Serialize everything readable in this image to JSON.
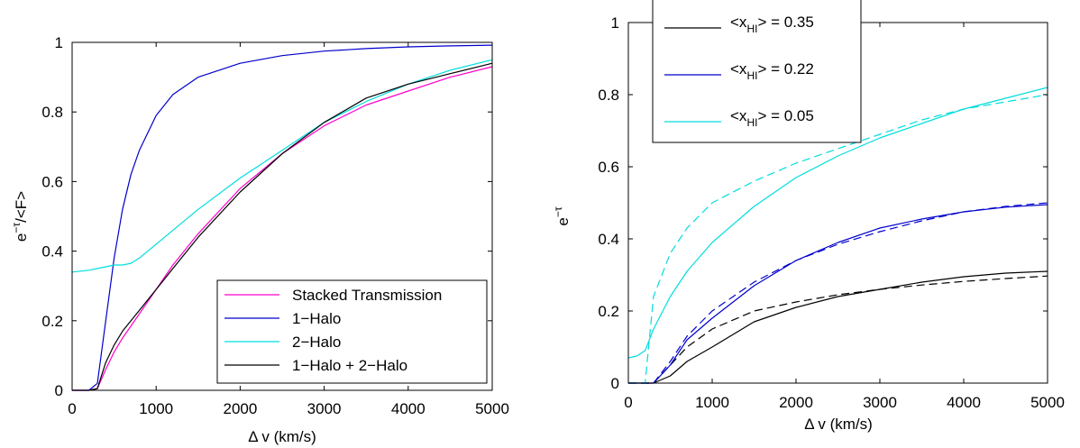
{
  "chart_data": [
    {
      "type": "line",
      "xlabel": "Δ v (km/s)",
      "ylabel": "e^-τ/<F>",
      "xlim": [
        0,
        5000
      ],
      "ylim": [
        0,
        1
      ],
      "xticks": [
        0,
        1000,
        2000,
        3000,
        4000,
        5000
      ],
      "yticks": [
        0,
        0.2,
        0.4,
        0.6,
        0.8,
        1
      ],
      "xtick_labels": [
        "0",
        "1000",
        "2000",
        "3000",
        "4000",
        "5000"
      ],
      "ytick_labels": [
        "0",
        "0.2",
        "0.4",
        "0.6",
        "0.8",
        "1"
      ],
      "grid": false,
      "legend_position": "bottom-right",
      "series": [
        {
          "name": "Stacked Transmission",
          "color": "#ff00cc",
          "dash": "solid",
          "x": [
            0,
            200,
            300,
            400,
            500,
            600,
            800,
            1000,
            1200,
            1500,
            2000,
            2500,
            3000,
            3500,
            4000,
            4500,
            5000
          ],
          "y": [
            0,
            0,
            0.005,
            0.06,
            0.11,
            0.15,
            0.22,
            0.29,
            0.36,
            0.45,
            0.58,
            0.68,
            0.76,
            0.82,
            0.86,
            0.9,
            0.93
          ]
        },
        {
          "name": "1−Halo",
          "color": "#0000cc",
          "dash": "solid",
          "x": [
            0,
            200,
            300,
            400,
            500,
            600,
            700,
            800,
            1000,
            1200,
            1500,
            2000,
            2500,
            3000,
            3500,
            4000,
            4500,
            5000
          ],
          "y": [
            0,
            0,
            0.02,
            0.2,
            0.38,
            0.52,
            0.62,
            0.69,
            0.79,
            0.85,
            0.9,
            0.94,
            0.962,
            0.975,
            0.982,
            0.987,
            0.99,
            0.992
          ]
        },
        {
          "name": "2−Halo",
          "color": "#00dddd",
          "dash": "solid",
          "x": [
            0,
            200,
            400,
            500,
            600,
            700,
            800,
            1000,
            1200,
            1500,
            2000,
            2500,
            3000,
            3500,
            4000,
            4500,
            5000
          ],
          "y": [
            0.34,
            0.345,
            0.355,
            0.36,
            0.36,
            0.365,
            0.38,
            0.42,
            0.46,
            0.52,
            0.61,
            0.69,
            0.77,
            0.83,
            0.88,
            0.92,
            0.95
          ]
        },
        {
          "name": "1−Halo + 2−Halo",
          "color": "#000000",
          "dash": "solid",
          "x": [
            0,
            200,
            300,
            400,
            500,
            600,
            800,
            1000,
            1200,
            1500,
            2000,
            2500,
            3000,
            3500,
            4000,
            4500,
            5000
          ],
          "y": [
            0,
            0,
            0.005,
            0.08,
            0.13,
            0.17,
            0.23,
            0.29,
            0.35,
            0.44,
            0.57,
            0.68,
            0.77,
            0.84,
            0.88,
            0.91,
            0.94
          ]
        }
      ]
    },
    {
      "type": "line",
      "xlabel": "Δ v (km/s)",
      "ylabel": "e^-τ",
      "xlim": [
        0,
        5000
      ],
      "ylim": [
        0,
        1
      ],
      "xticks": [
        0,
        1000,
        2000,
        3000,
        4000,
        5000
      ],
      "yticks": [
        0,
        0.2,
        0.4,
        0.6,
        0.8,
        1
      ],
      "xtick_labels": [
        "0",
        "1000",
        "2000",
        "3000",
        "4000",
        "5000"
      ],
      "ytick_labels": [
        "0",
        "0.2",
        "0.4",
        "0.6",
        "0.8",
        "1"
      ],
      "grid": false,
      "legend_position": "top-left",
      "series": [
        {
          "name": "<x_HI> = 0.35",
          "color": "#000000",
          "dash": "solid",
          "x": [
            0,
            300,
            500,
            700,
            1000,
            1500,
            2000,
            2500,
            3000,
            3500,
            4000,
            4500,
            5000
          ],
          "y": [
            0,
            0,
            0.02,
            0.06,
            0.1,
            0.17,
            0.21,
            0.24,
            0.26,
            0.28,
            0.295,
            0.305,
            0.31
          ]
        },
        {
          "name": "<x_HI> = 0.35 (dashed)",
          "color": "#000000",
          "dash": "dashed",
          "x": [
            0,
            300,
            500,
            700,
            1000,
            1500,
            2000,
            2500,
            3000,
            3500,
            4000,
            4500,
            5000
          ],
          "y": [
            0,
            0,
            0.05,
            0.1,
            0.15,
            0.2,
            0.225,
            0.245,
            0.26,
            0.272,
            0.282,
            0.29,
            0.297
          ]
        },
        {
          "name": "<x_HI> = 0.22",
          "color": "#0000cc",
          "dash": "solid",
          "x": [
            0,
            300,
            500,
            700,
            1000,
            1500,
            2000,
            2500,
            3000,
            3500,
            4000,
            4500,
            5000
          ],
          "y": [
            0,
            0,
            0.05,
            0.12,
            0.18,
            0.27,
            0.34,
            0.39,
            0.43,
            0.455,
            0.475,
            0.488,
            0.495
          ]
        },
        {
          "name": "<x_HI> = 0.22 (dashed)",
          "color": "#0000cc",
          "dash": "dashed",
          "x": [
            0,
            300,
            500,
            700,
            1000,
            1500,
            2000,
            2500,
            3000,
            3500,
            4000,
            4500,
            5000
          ],
          "y": [
            0,
            0,
            0.06,
            0.13,
            0.2,
            0.28,
            0.34,
            0.385,
            0.42,
            0.45,
            0.475,
            0.49,
            0.5
          ]
        },
        {
          "name": "<x_HI> = 0.05",
          "color": "#00dddd",
          "dash": "solid",
          "x": [
            0,
            100,
            200,
            300,
            500,
            700,
            1000,
            1500,
            2000,
            2500,
            3000,
            3500,
            4000,
            4500,
            5000
          ],
          "y": [
            0.07,
            0.075,
            0.09,
            0.15,
            0.24,
            0.31,
            0.39,
            0.49,
            0.57,
            0.63,
            0.68,
            0.72,
            0.76,
            0.79,
            0.82
          ]
        },
        {
          "name": "<x_HI> = 0.05 (dashed)",
          "color": "#00dddd",
          "dash": "dashed",
          "x": [
            0,
            200,
            300,
            500,
            700,
            1000,
            1500,
            2000,
            2500,
            3000,
            3500,
            4000,
            4500,
            5000
          ],
          "y": [
            0,
            0,
            0.24,
            0.36,
            0.43,
            0.5,
            0.56,
            0.61,
            0.65,
            0.69,
            0.73,
            0.76,
            0.78,
            0.8
          ]
        }
      ],
      "legend_items": [
        {
          "prefix": "<x",
          "sub": "HI",
          "suffix": "> = 0.35",
          "color": "#000000"
        },
        {
          "prefix": "<x",
          "sub": "HI",
          "suffix": "> = 0.22",
          "color": "#0000cc"
        },
        {
          "prefix": "<x",
          "sub": "HI",
          "suffix": "> = 0.05",
          "color": "#00dddd"
        }
      ]
    }
  ],
  "labels": {
    "left_xlabel": "Δ v (km/s)",
    "left_ylabel_base": "e",
    "left_ylabel_sup": "−τ",
    "left_ylabel_tail": "/<F>",
    "right_xlabel": "Δ v (km/s)",
    "right_ylabel_base": "e",
    "right_ylabel_sup": "−τ"
  }
}
